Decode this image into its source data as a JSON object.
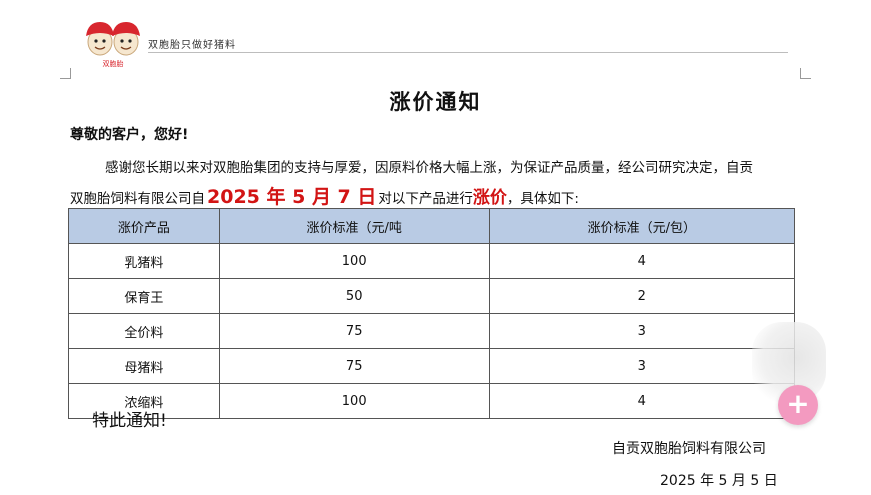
{
  "header": {
    "logo_text": "双胞胎",
    "slogan": "双胞胎只做好猪料"
  },
  "document": {
    "title": "涨价通知",
    "greeting": "尊敬的客户，您好!",
    "para1": "感谢您长期以来对双胞胎集团的支持与厚爱，因原料价格大幅上涨，为保证产品质量，经公司研究决定，自贡",
    "para2_prefix": "双胞胎饲料有限公司自",
    "para2_date": "2025 年 5 月 7 日",
    "para2_mid": "对以下产品进行",
    "para2_highlight": "涨价",
    "para2_suffix": "，具体如下:",
    "notice": "特此通知!",
    "company": "自贡双胞胎饲料有限公司",
    "date": "2025 年 5 月 5 日",
    "highlight_color": "#d21414"
  },
  "table": {
    "headers": [
      "涨价产品",
      "涨价标准（元/吨",
      "涨价标准（元/包）"
    ],
    "rows": [
      [
        "乳猪料",
        "100",
        "4"
      ],
      [
        "保育王",
        "50",
        "2"
      ],
      [
        "全价料",
        "75",
        "3"
      ],
      [
        "母猪料",
        "75",
        "3"
      ],
      [
        "浓缩料",
        "100",
        "4"
      ]
    ],
    "header_bg": "#b9cbe4"
  },
  "float_button": {
    "label": "+",
    "color": "#f39ac0"
  }
}
